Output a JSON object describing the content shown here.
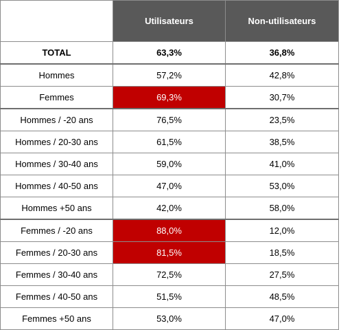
{
  "colors": {
    "header_bg": "#595959",
    "header_text": "#ffffff",
    "highlight_bg": "#c00000",
    "highlight_text": "#ffffff"
  },
  "chart_data": {
    "type": "table",
    "columns": [
      "",
      "Utilisateurs",
      "Non-utilisateurs"
    ],
    "rows": [
      {
        "label": "TOTAL",
        "users": "63,3%",
        "non_users": "36,8%",
        "bold": true,
        "highlight_users": false,
        "group_start": false
      },
      {
        "label": "Hommes",
        "users": "57,2%",
        "non_users": "42,8%",
        "bold": false,
        "highlight_users": false,
        "group_start": true
      },
      {
        "label": "Femmes",
        "users": "69,3%",
        "non_users": "30,7%",
        "bold": false,
        "highlight_users": true,
        "group_start": false
      },
      {
        "label": "Hommes / -20 ans",
        "users": "76,5%",
        "non_users": "23,5%",
        "bold": false,
        "highlight_users": false,
        "group_start": true
      },
      {
        "label": "Hommes / 20-30 ans",
        "users": "61,5%",
        "non_users": "38,5%",
        "bold": false,
        "highlight_users": false,
        "group_start": false
      },
      {
        "label": "Hommes / 30-40 ans",
        "users": "59,0%",
        "non_users": "41,0%",
        "bold": false,
        "highlight_users": false,
        "group_start": false
      },
      {
        "label": "Hommes / 40-50 ans",
        "users": "47,0%",
        "non_users": "53,0%",
        "bold": false,
        "highlight_users": false,
        "group_start": false
      },
      {
        "label": "Hommes +50 ans",
        "users": "42,0%",
        "non_users": "58,0%",
        "bold": false,
        "highlight_users": false,
        "group_start": false
      },
      {
        "label": "Femmes / -20 ans",
        "users": "88,0%",
        "non_users": "12,0%",
        "bold": false,
        "highlight_users": true,
        "group_start": true
      },
      {
        "label": "Femmes / 20-30 ans",
        "users": "81,5%",
        "non_users": "18,5%",
        "bold": false,
        "highlight_users": true,
        "group_start": false
      },
      {
        "label": "Femmes / 30-40 ans",
        "users": "72,5%",
        "non_users": "27,5%",
        "bold": false,
        "highlight_users": false,
        "group_start": false
      },
      {
        "label": "Femmes / 40-50 ans",
        "users": "51,5%",
        "non_users": "48,5%",
        "bold": false,
        "highlight_users": false,
        "group_start": false
      },
      {
        "label": "Femmes +50 ans",
        "users": "53,0%",
        "non_users": "47,0%",
        "bold": false,
        "highlight_users": false,
        "group_start": false
      }
    ]
  }
}
